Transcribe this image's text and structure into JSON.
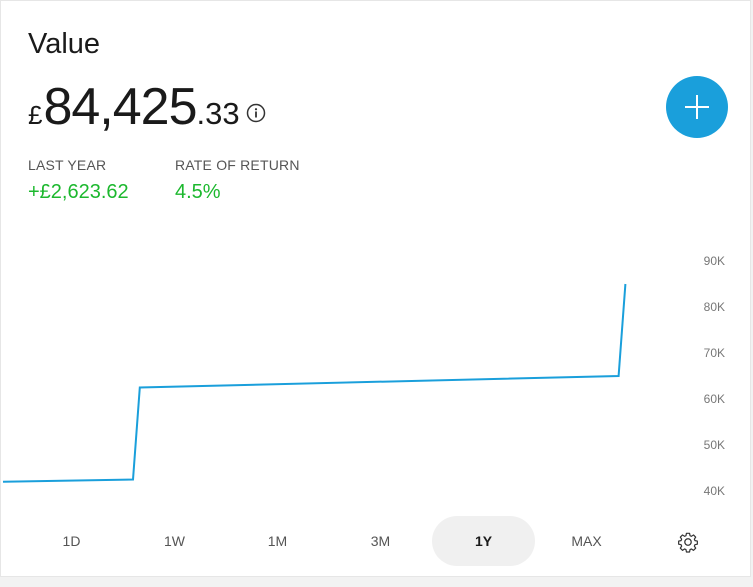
{
  "header": {
    "title": "Value"
  },
  "balance": {
    "currency": "£",
    "whole": "84,425",
    "fraction": ".33"
  },
  "stats": [
    {
      "label": "LAST YEAR",
      "value": "+£2,623.62"
    },
    {
      "label": "RATE OF RETURN",
      "value": "4.5%"
    }
  ],
  "ranges": [
    {
      "label": "1D",
      "active": false
    },
    {
      "label": "1W",
      "active": false
    },
    {
      "label": "1M",
      "active": false
    },
    {
      "label": "3M",
      "active": false
    },
    {
      "label": "1Y",
      "active": true
    },
    {
      "label": "MAX",
      "active": false
    }
  ],
  "icons": {
    "info": "info-icon",
    "add": "plus-icon",
    "settings": "gear-icon"
  },
  "colors": {
    "accent": "#1a9fdb",
    "positive": "#1cb82e",
    "line": "#1a9fdb"
  },
  "chart_data": {
    "type": "line",
    "y_ticks": [
      "90K",
      "80K",
      "70K",
      "60K",
      "50K",
      "40K"
    ],
    "ylim": [
      40000,
      90000
    ],
    "series": [
      {
        "x": [
          0,
          0.19,
          0.2,
          0.9,
          0.91
        ],
        "values": [
          42000,
          42500,
          62500,
          65000,
          85000
        ]
      }
    ]
  }
}
